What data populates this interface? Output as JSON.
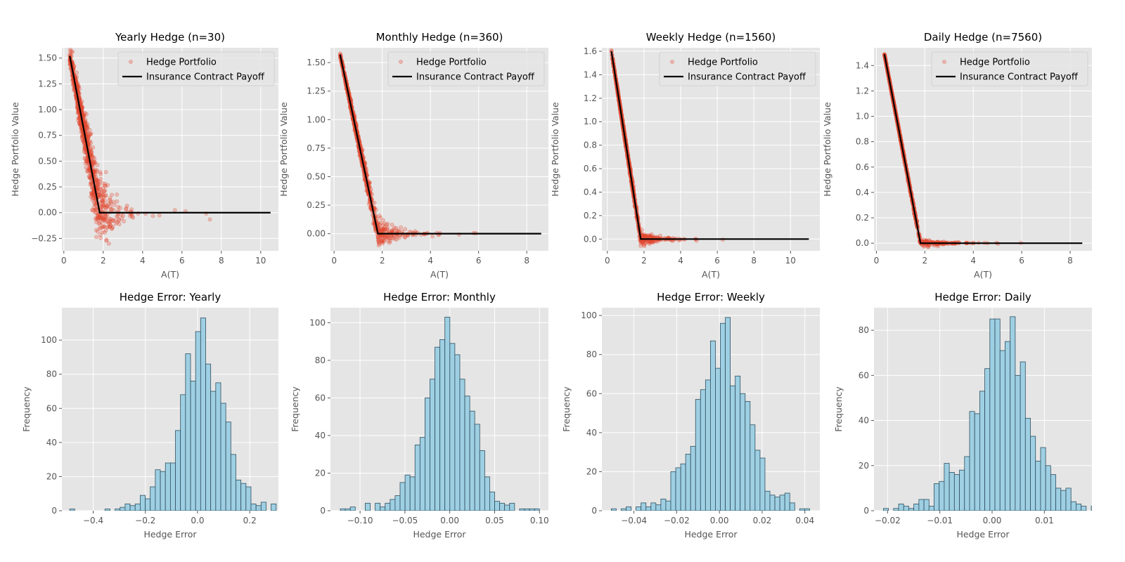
{
  "colors": {
    "axes_bg": "#e5e5e5",
    "grid": "#ffffff",
    "scatter": "#e24a33",
    "payoff_line": "#000000",
    "bar_fill": "#9ecfe3",
    "bar_edge": "#2f4f5f"
  },
  "chart_data": [
    {
      "type": "scatter",
      "title": "Yearly Hedge (n=30)",
      "xlabel": "A(T)",
      "ylabel": "Hedge Portfolio Value",
      "xlim": [
        -0.1,
        10.9
      ],
      "ylim": [
        -0.37,
        1.6
      ],
      "xticks": [
        0,
        2,
        4,
        6,
        8,
        10
      ],
      "xticklabels": [
        "0",
        "2",
        "4",
        "6",
        "8",
        "10"
      ],
      "yticks": [
        -0.25,
        0,
        0.25,
        0.5,
        0.75,
        1.0,
        1.25,
        1.5
      ],
      "yticklabels": [
        "−0.25",
        "0.00",
        "0.25",
        "0.50",
        "0.75",
        "1.00",
        "1.25",
        "1.50"
      ],
      "grid": true,
      "legend": {
        "placement": "upper-right",
        "entries": [
          "Hedge Portfolio",
          "Insurance Contract Payoff"
        ]
      },
      "payoff": {
        "strike": 1.82,
        "x": [
          0.3,
          10.5
        ]
      },
      "noise": 0.1,
      "xmax_cloud": 10.5,
      "seed": 11
    },
    {
      "type": "scatter",
      "title": "Monthly Hedge (n=360)",
      "xlabel": "A(T)",
      "ylabel": "Hedge Portfolio Value",
      "xlim": [
        -0.15,
        8.9
      ],
      "ylim": [
        -0.15,
        1.63
      ],
      "xticks": [
        0,
        2,
        4,
        6,
        8
      ],
      "xticklabels": [
        "0",
        "2",
        "4",
        "6",
        "8"
      ],
      "yticks": [
        0,
        0.25,
        0.5,
        0.75,
        1.0,
        1.25,
        1.5
      ],
      "yticklabels": [
        "0.00",
        "0.25",
        "0.50",
        "0.75",
        "1.00",
        "1.25",
        "1.50"
      ],
      "grid": true,
      "legend": {
        "placement": "upper-right",
        "entries": [
          "Hedge Portfolio",
          "Insurance Contract Payoff"
        ]
      },
      "payoff": {
        "strike": 1.82,
        "x": [
          0.25,
          8.6
        ]
      },
      "noise": 0.03,
      "xmax_cloud": 8.6,
      "seed": 23
    },
    {
      "type": "scatter",
      "title": "Weekly Hedge (n=1560)",
      "xlabel": "A(T)",
      "ylabel": "Hedge Portfolio Value",
      "xlim": [
        -0.3,
        11.6
      ],
      "ylim": [
        -0.1,
        1.63
      ],
      "xticks": [
        0,
        2,
        4,
        6,
        8,
        10
      ],
      "xticklabels": [
        "0",
        "2",
        "4",
        "6",
        "8",
        "10"
      ],
      "yticks": [
        0,
        0.2,
        0.4,
        0.6,
        0.8,
        1.0,
        1.2,
        1.4,
        1.6
      ],
      "yticklabels": [
        "0.0",
        "0.2",
        "0.4",
        "0.6",
        "0.8",
        "1.0",
        "1.2",
        "1.4",
        "1.6"
      ],
      "grid": true,
      "legend": {
        "placement": "upper-right",
        "entries": [
          "Hedge Portfolio",
          "Insurance Contract Payoff"
        ]
      },
      "payoff": {
        "strike": 1.82,
        "x": [
          0.22,
          11.0
        ]
      },
      "noise": 0.015,
      "xmax_cloud": 11.0,
      "seed": 37
    },
    {
      "type": "scatter",
      "title": "Daily Hedge (n=7560)",
      "xlabel": "A(T)",
      "ylabel": "Hedge Portfolio Value",
      "xlim": [
        -0.1,
        8.9
      ],
      "ylim": [
        -0.06,
        1.54
      ],
      "xticks": [
        0,
        2,
        4,
        6,
        8
      ],
      "xticklabels": [
        "0",
        "2",
        "4",
        "6",
        "8"
      ],
      "yticks": [
        0,
        0.2,
        0.4,
        0.6,
        0.8,
        1.0,
        1.2,
        1.4
      ],
      "yticklabels": [
        "0.0",
        "0.2",
        "0.4",
        "0.6",
        "0.8",
        "1.0",
        "1.2",
        "1.4"
      ],
      "grid": true,
      "legend": {
        "placement": "upper-right",
        "entries": [
          "Hedge Portfolio",
          "Insurance Contract Payoff"
        ]
      },
      "payoff": {
        "strike": 1.82,
        "x": [
          0.33,
          8.5
        ]
      },
      "noise": 0.007,
      "xmax_cloud": 8.5,
      "seed": 41
    },
    {
      "type": "bar",
      "title": "Hedge Error: Yearly",
      "xlabel": "Hedge Error",
      "ylabel": "Frequency",
      "xlim": [
        -0.52,
        0.31
      ],
      "ylim": [
        0,
        119
      ],
      "xticks": [
        -0.4,
        -0.2,
        0,
        0.2
      ],
      "xticklabels": [
        "−0.4",
        "−0.2",
        "0.0",
        "0.2"
      ],
      "yticks": [
        0,
        20,
        40,
        60,
        80,
        100
      ],
      "yticklabels": [
        "0",
        "20",
        "40",
        "60",
        "80",
        "100"
      ],
      "grid": true,
      "bin_start": -0.49,
      "bin_width": 0.0193,
      "counts": [
        1,
        0,
        0,
        0,
        0,
        0,
        0,
        1,
        0,
        1,
        2,
        4,
        3,
        4,
        9,
        7,
        14,
        24,
        23,
        28,
        28,
        47,
        68,
        92,
        76,
        105,
        113,
        86,
        70,
        75,
        63,
        52,
        33,
        18,
        16,
        14,
        4,
        3,
        5,
        0,
        4
      ]
    },
    {
      "type": "bar",
      "title": "Hedge Error: Monthly",
      "xlabel": "Hedge Error",
      "ylabel": "Frequency",
      "xlim": [
        -0.133,
        0.11
      ],
      "ylim": [
        0,
        108
      ],
      "xticks": [
        -0.1,
        -0.05,
        0,
        0.05,
        0.1
      ],
      "xticklabels": [
        "−0.10",
        "−0.05",
        "0.00",
        "0.05",
        "0.10"
      ],
      "yticks": [
        0,
        20,
        40,
        60,
        80,
        100
      ],
      "yticklabels": [
        "0",
        "20",
        "40",
        "60",
        "80",
        "100"
      ],
      "grid": true,
      "bin_start": -0.122,
      "bin_width": 0.00555,
      "counts": [
        1,
        1,
        2,
        0,
        0,
        4,
        0,
        4,
        2,
        4,
        6,
        8,
        15,
        19,
        18,
        35,
        39,
        60,
        70,
        87,
        91,
        103,
        89,
        83,
        70,
        61,
        53,
        46,
        32,
        18,
        10,
        5,
        4,
        3,
        4,
        0,
        1,
        1,
        1,
        1
      ]
    },
    {
      "type": "bar",
      "title": "Hedge Error: Weekly",
      "xlabel": "Hedge Error",
      "ylabel": "Frequency",
      "xlim": [
        -0.055,
        0.047
      ],
      "ylim": [
        0,
        104
      ],
      "xticks": [
        -0.04,
        -0.02,
        0,
        0.02,
        0.04
      ],
      "xticklabels": [
        "−0.04",
        "−0.02",
        "0.00",
        "0.02",
        "0.04"
      ],
      "yticks": [
        0,
        20,
        40,
        60,
        80,
        100
      ],
      "yticklabels": [
        "0",
        "20",
        "40",
        "60",
        "80",
        "100"
      ],
      "grid": true,
      "bin_start": -0.0506,
      "bin_width": 0.00232,
      "counts": [
        1,
        0,
        1,
        2,
        0,
        2,
        4,
        2,
        4,
        3,
        6,
        5,
        20,
        22,
        24,
        29,
        33,
        57,
        62,
        67,
        87,
        73,
        96,
        99,
        64,
        69,
        60,
        56,
        44,
        31,
        27,
        10,
        8,
        7,
        8,
        9,
        4,
        0,
        1,
        1
      ]
    },
    {
      "type": "bar",
      "title": "Hedge Error: Daily",
      "xlabel": "Hedge Error",
      "ylabel": "Frequency",
      "xlim": [
        -0.0226,
        0.0191
      ],
      "ylim": [
        0,
        90
      ],
      "xticks": [
        -0.02,
        -0.01,
        0,
        0.01
      ],
      "xticklabels": [
        "−0.02",
        "−0.01",
        "0.00",
        "0.01"
      ],
      "yticks": [
        0,
        20,
        40,
        60,
        80
      ],
      "yticklabels": [
        "0",
        "20",
        "40",
        "60",
        "80"
      ],
      "grid": true,
      "bin_start": -0.0208,
      "bin_width": 0.00097,
      "counts": [
        1,
        0,
        1,
        3,
        2,
        1,
        3,
        5,
        5,
        2,
        12,
        13,
        21,
        17,
        16,
        18,
        24,
        44,
        43,
        53,
        63,
        85,
        85,
        71,
        75,
        86,
        60,
        66,
        41,
        33,
        22,
        28,
        20,
        16,
        10,
        9,
        10,
        4,
        3,
        2,
        0,
        2
      ]
    }
  ]
}
